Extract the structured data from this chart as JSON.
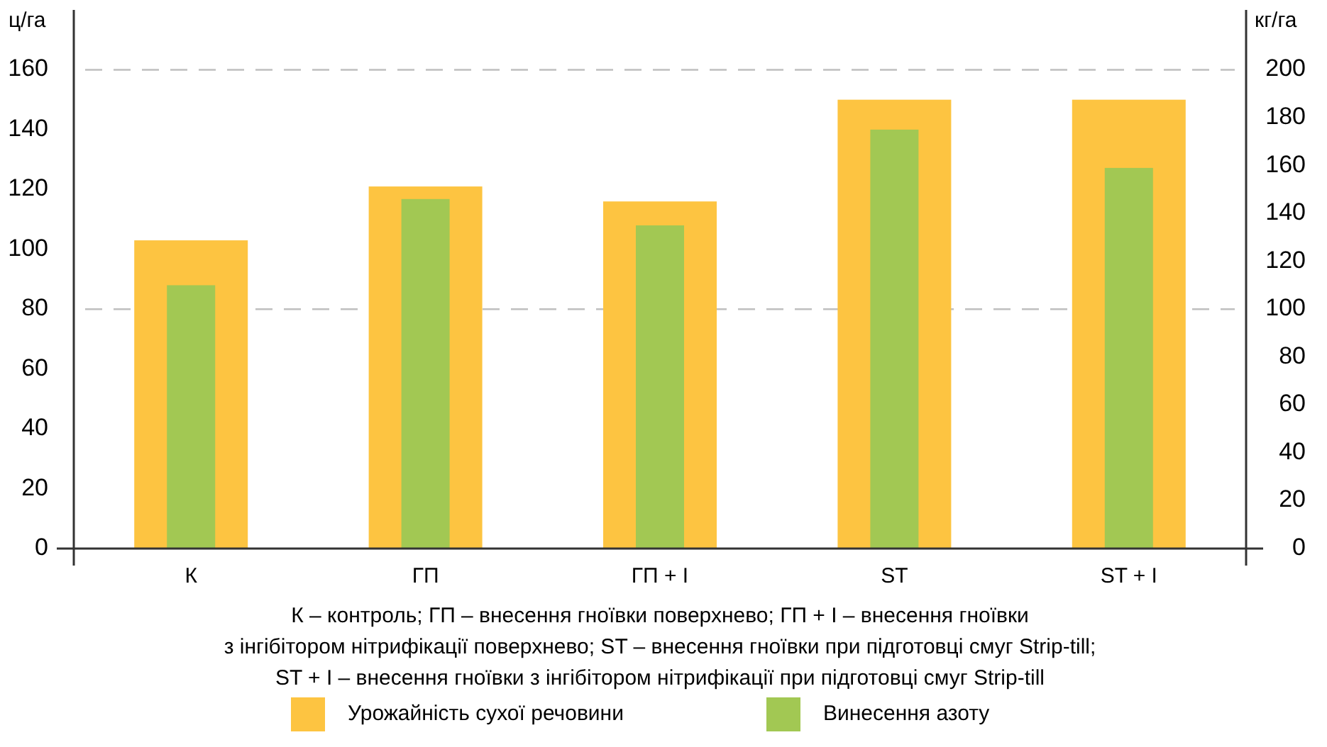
{
  "chart_data": {
    "type": "bar",
    "ylabel": "ц/га",
    "y2label": "кг/га",
    "categories": [
      "К",
      "ГП",
      "ГП + І",
      "ST",
      "ST + І"
    ],
    "series": [
      {
        "name": "Урожайність сухої речовини",
        "color": "#fdc441",
        "values": [
          103,
          121,
          116,
          150,
          150
        ]
      },
      {
        "name": "Винесення азоту",
        "color": "#a2c853",
        "axis": "y2",
        "values": [
          110,
          146,
          135,
          175,
          159
        ]
      }
    ],
    "ylim": [
      0,
      180
    ],
    "yticks": [
      0,
      20,
      40,
      60,
      80,
      100,
      120,
      140,
      160
    ],
    "y2lim": [
      0,
      225
    ],
    "y2ticks": [
      0,
      20,
      40,
      60,
      80,
      100,
      120,
      140,
      160,
      180,
      200
    ],
    "ref_lines": [
      {
        "axis": "y",
        "value": 80,
        "color": "#bfbfbf",
        "line_style": "dashed"
      },
      {
        "axis": "y",
        "value": 160,
        "color": "#bfbfbf",
        "line_style": "dashed"
      }
    ],
    "annotations": [
      "К – контроль; ГП – внесення гноївки поверхнево; ГП + І – внесення гноївки",
      "з інгібітором нітрифікації поверхнево; ST – внесення гноївки при підготовці смуг Strip-till;",
      "ST + І – внесення гноївки з інгібітором нітрифікації при підготовці смуг Strip-till"
    ],
    "legend": "bottom"
  }
}
